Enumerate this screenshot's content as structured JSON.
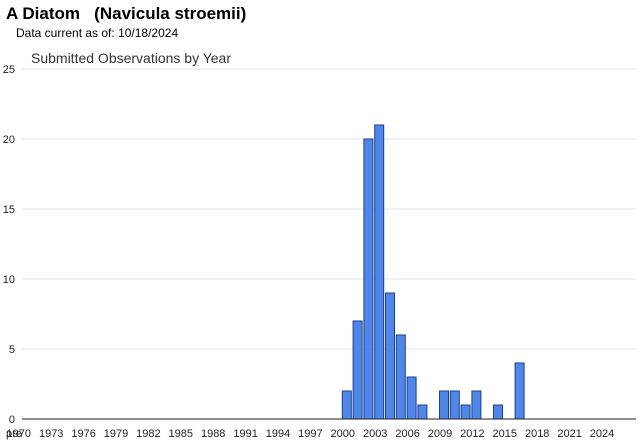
{
  "header": {
    "common_name": "A Diatom",
    "scientific_name": "(Navicula stroemii)",
    "data_current_label": "Data current as of:",
    "data_current_date": "10/18/2024"
  },
  "chart_data": {
    "type": "bar",
    "title": "Submitted Observations by Year",
    "xlabel": "",
    "ylabel": "",
    "ylim": [
      0,
      25
    ],
    "yticks": [
      0,
      5,
      10,
      15,
      20,
      25
    ],
    "grid": true,
    "legend": "none",
    "bar_color": "#4f86e8",
    "bar_edge_color": "#1a3f8f",
    "categories": [
      "pre 1970",
      "1970",
      "1971",
      "1972",
      "1973",
      "1974",
      "1975",
      "1976",
      "1977",
      "1978",
      "1979",
      "1980",
      "1981",
      "1982",
      "1983",
      "1984",
      "1985",
      "1986",
      "1987",
      "1988",
      "1989",
      "1990",
      "1991",
      "1992",
      "1993",
      "1994",
      "1995",
      "1996",
      "1997",
      "1998",
      "1999",
      "2000",
      "2001",
      "2002",
      "2003",
      "2004",
      "2005",
      "2006",
      "2007",
      "2008",
      "2009",
      "2010",
      "2011",
      "2012",
      "2013",
      "2014",
      "2015",
      "2016",
      "2017",
      "2018",
      "2019",
      "2020",
      "2021",
      "2022",
      "2023",
      "2024"
    ],
    "tick_labels": [
      "pre",
      "1970",
      "1973",
      "1976",
      "1979",
      "1982",
      "1985",
      "1988",
      "1991",
      "1994",
      "1997",
      "2000",
      "2003",
      "2006",
      "2009",
      "2012",
      "2015",
      "2018",
      "2021",
      "2024"
    ],
    "values": [
      0,
      0,
      0,
      0,
      0,
      0,
      0,
      0,
      0,
      0,
      0,
      0,
      0,
      0,
      0,
      0,
      0,
      0,
      0,
      0,
      0,
      0,
      0,
      0,
      0,
      0,
      0,
      0,
      0,
      0,
      0,
      2,
      7,
      20,
      21,
      9,
      6,
      3,
      1,
      0,
      2,
      2,
      1,
      2,
      0,
      1,
      0,
      4,
      0,
      0,
      0,
      0,
      0,
      0,
      0,
      0
    ]
  }
}
